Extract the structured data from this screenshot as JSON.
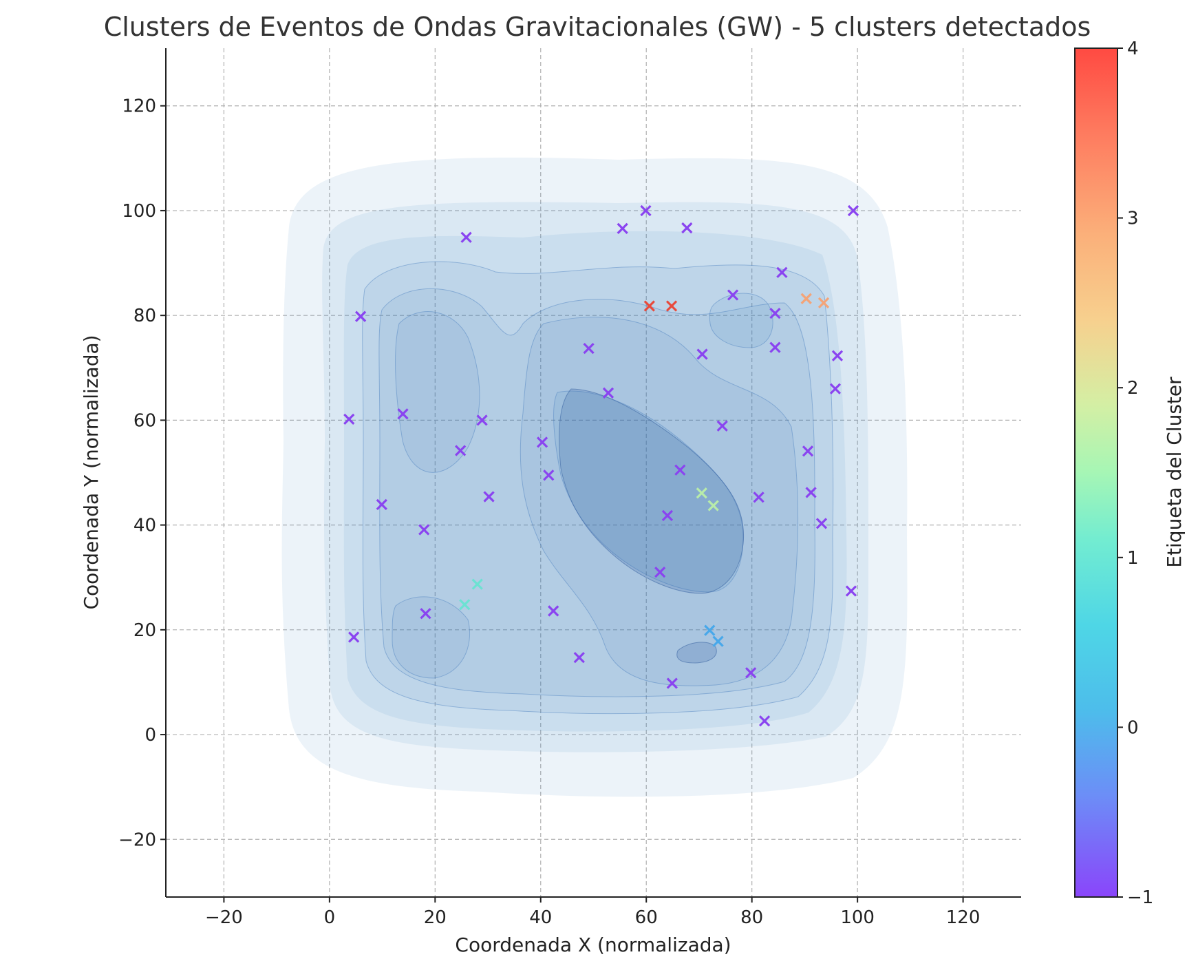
{
  "chart_data": {
    "type": "scatter",
    "title": "Clusters de Eventos de Ondas Gravitacionales (GW) - 5 clusters detectados",
    "xlabel": "Coordenada X (normalizada)",
    "ylabel": "Coordenada Y (normalizada)",
    "xlim": [
      -31,
      131
    ],
    "ylim": [
      -31,
      131
    ],
    "xticks": [
      "−20",
      "0",
      "20",
      "40",
      "60",
      "80",
      "100",
      "120"
    ],
    "yticks": [
      "−20",
      "0",
      "20",
      "40",
      "60",
      "80",
      "100",
      "120"
    ],
    "grid": true,
    "marker": "x",
    "overlay": "kde-density-contours",
    "colorbar": {
      "label": "Etiqueta del Cluster",
      "range": [
        -1,
        4
      ],
      "ticks": [
        "−1",
        "0",
        "1",
        "2",
        "3",
        "4"
      ],
      "colormap": "rainbow"
    },
    "series": [
      {
        "cluster": -1,
        "color": "#8a44f0",
        "points": [
          [
            3.7,
            60.2
          ],
          [
            5.9,
            79.8
          ],
          [
            4.6,
            18.6
          ],
          [
            9.9,
            43.9
          ],
          [
            13.9,
            61.2
          ],
          [
            17.9,
            39.1
          ],
          [
            18.2,
            23.1
          ],
          [
            24.8,
            54.2
          ],
          [
            25.9,
            94.9
          ],
          [
            28.9,
            60.0
          ],
          [
            30.2,
            45.4
          ],
          [
            40.3,
            55.8
          ],
          [
            41.5,
            49.5
          ],
          [
            42.4,
            23.6
          ],
          [
            47.3,
            14.7
          ],
          [
            49.1,
            73.7
          ],
          [
            52.8,
            65.2
          ],
          [
            55.5,
            96.6
          ],
          [
            59.9,
            100.0
          ],
          [
            62.6,
            31.0
          ],
          [
            64.0,
            41.8
          ],
          [
            64.9,
            9.8
          ],
          [
            66.4,
            50.5
          ],
          [
            67.7,
            96.7
          ],
          [
            70.6,
            72.6
          ],
          [
            74.4,
            58.9
          ],
          [
            76.4,
            83.9
          ],
          [
            79.8,
            11.8
          ],
          [
            81.3,
            45.3
          ],
          [
            82.4,
            2.6
          ],
          [
            84.4,
            80.4
          ],
          [
            84.4,
            73.9
          ],
          [
            85.7,
            88.2
          ],
          [
            90.6,
            54.1
          ],
          [
            91.2,
            46.2
          ],
          [
            93.2,
            40.3
          ],
          [
            95.8,
            66.0
          ],
          [
            96.2,
            72.3
          ],
          [
            98.8,
            27.4
          ],
          [
            99.2,
            100.0
          ]
        ]
      },
      {
        "cluster": 0,
        "color": "#48a8ea",
        "points": [
          [
            72.0,
            19.9
          ],
          [
            73.6,
            17.8
          ]
        ]
      },
      {
        "cluster": 1,
        "color": "#6ce2d2",
        "points": [
          [
            25.6,
            24.8
          ],
          [
            28.0,
            28.7
          ]
        ]
      },
      {
        "cluster": 2,
        "color": "#b8ecaa",
        "points": [
          [
            70.5,
            46.1
          ],
          [
            72.7,
            43.7
          ]
        ]
      },
      {
        "cluster": 3,
        "color": "#f4a478",
        "points": [
          [
            90.3,
            83.2
          ],
          [
            93.6,
            82.4
          ]
        ]
      },
      {
        "cluster": 4,
        "color": "#e84a3c",
        "points": [
          [
            60.6,
            81.8
          ],
          [
            64.8,
            81.8
          ]
        ]
      }
    ]
  }
}
